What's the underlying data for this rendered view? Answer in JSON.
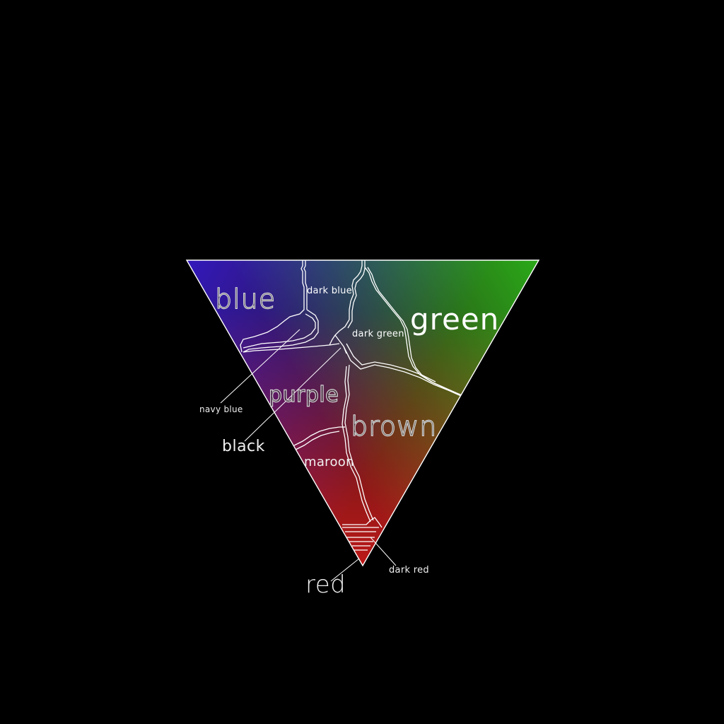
{
  "diagram": {
    "vertex_colors": {
      "top_left": "#0a00b4",
      "top_right": "#00a000",
      "bottom": "#b00000"
    },
    "center_color": "#2a1818",
    "regions": [
      {
        "key": "blue",
        "label": "blue"
      },
      {
        "key": "dark_blue",
        "label": "dark blue"
      },
      {
        "key": "green",
        "label": "green"
      },
      {
        "key": "dark_green",
        "label": "dark green"
      },
      {
        "key": "navy_blue",
        "label": "navy blue"
      },
      {
        "key": "purple",
        "label": "purple"
      },
      {
        "key": "black",
        "label": "black"
      },
      {
        "key": "brown",
        "label": "brown"
      },
      {
        "key": "maroon",
        "label": "maroon"
      },
      {
        "key": "dark_red",
        "label": "dark red"
      },
      {
        "key": "red",
        "label": "red"
      }
    ],
    "border_color": "#ffffff",
    "background": "#000000"
  }
}
